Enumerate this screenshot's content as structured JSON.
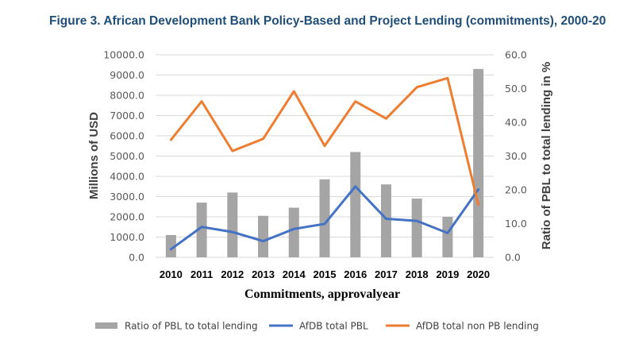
{
  "figure_title": "Figure 3. African Development Bank Policy-Based and Project Lending (commitments), 2000-20",
  "chart_data": {
    "type": "bar",
    "title": "Figure 3. African Development Bank Policy-Based and Project Lending (commitments), 2000-20",
    "xlabel": "Commitments, approvalyear",
    "ylabel": "Millions of USD",
    "y2label": "Ratio of PBL to total lending in %",
    "categories": [
      "2010",
      "2011",
      "2012",
      "2013",
      "2014",
      "2015",
      "2016",
      "2017",
      "2018",
      "2019",
      "2020"
    ],
    "ylim": [
      0,
      10000
    ],
    "y2lim": [
      0,
      60
    ],
    "yticks": [
      "0.0",
      "1000.0",
      "2000.0",
      "3000.0",
      "4000.0",
      "5000.0",
      "6000.0",
      "7000.0",
      "8000.0",
      "9000.0",
      "10000.0"
    ],
    "y2ticks": [
      "0.0",
      "10.0",
      "20.0",
      "30.0",
      "40.0",
      "50.0",
      "60.0"
    ],
    "grid": true,
    "legend_position": "bottom",
    "series": [
      {
        "name": "Ratio of PBL to total lending",
        "type": "bar",
        "axis": "left",
        "color": "#a5a5a5",
        "values": [
          1100,
          2700,
          3200,
          2050,
          2450,
          3850,
          5200,
          3600,
          2900,
          2000,
          9300
        ]
      },
      {
        "name": "AfDB total PBL",
        "type": "line",
        "axis": "left",
        "color": "#4472c4",
        "values": [
          400,
          1500,
          1250,
          800,
          1400,
          1650,
          3500,
          1900,
          1800,
          1200,
          3350
        ]
      },
      {
        "name": "AfDB total non PB lending",
        "type": "line",
        "axis": "left",
        "color": "#ed7d31",
        "values": [
          5800,
          7700,
          5250,
          5850,
          8200,
          5500,
          7700,
          6850,
          8400,
          8850,
          2600
        ]
      }
    ]
  }
}
